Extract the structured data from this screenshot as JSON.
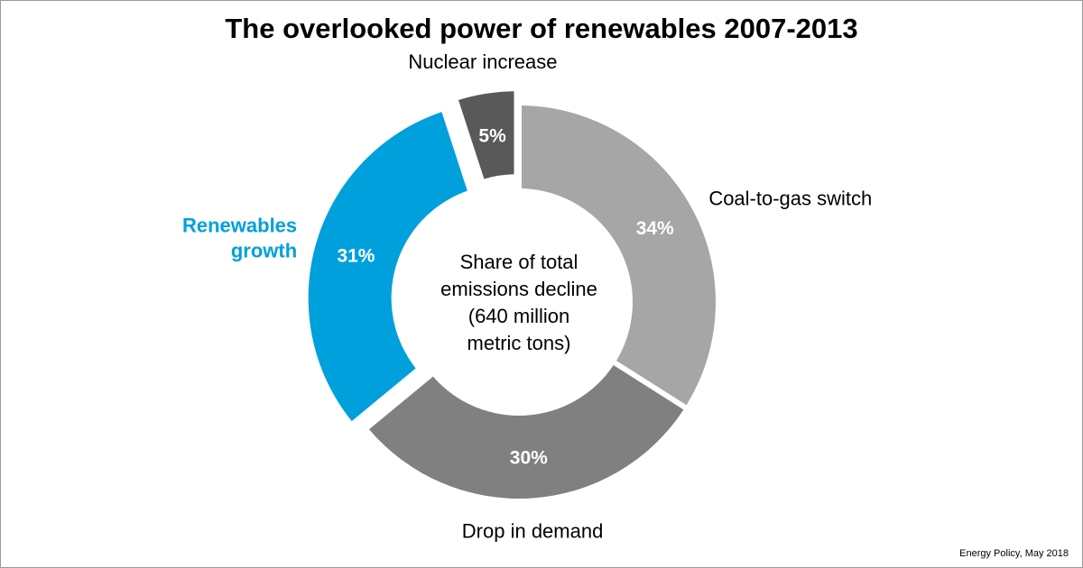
{
  "chart_data": {
    "type": "pie",
    "title": "The overlooked power of renewables 2007-2013",
    "center_label": [
      "Share of total",
      "emissions decline",
      "(640 million",
      "metric tons)"
    ],
    "slices": [
      {
        "name": "Coal-to-gas switch",
        "label_lines": [
          "Coal-to-gas switch"
        ],
        "value": 34,
        "value_label": "34%",
        "color": "#a6a6a6",
        "label_color": "#000000"
      },
      {
        "name": "Drop in demand",
        "label_lines": [
          "Drop in demand"
        ],
        "value": 30,
        "value_label": "30%",
        "color": "#808080",
        "label_color": "#000000"
      },
      {
        "name": "Renewables growth",
        "label_lines": [
          "Renewables",
          "growth"
        ],
        "value": 31,
        "value_label": "31%",
        "color": "#00a0dc",
        "label_color": "#00a0dc"
      },
      {
        "name": "Nuclear increase",
        "label_lines": [
          "Nuclear increase"
        ],
        "value": 5,
        "value_label": "5%",
        "color": "#595959",
        "label_color": "#000000"
      }
    ],
    "exploded_slices": [
      "Renewables growth",
      "Nuclear increase"
    ],
    "source": "Energy Policy, May 2018"
  }
}
